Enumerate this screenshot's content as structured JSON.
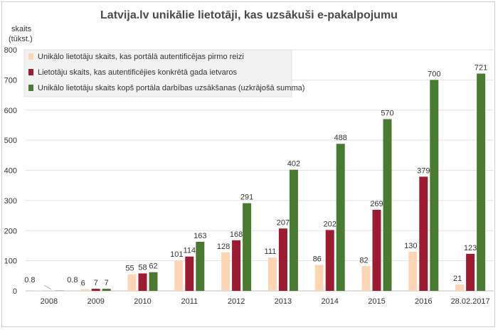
{
  "chart_data": {
    "type": "bar",
    "title": "Latvija.lv unikālie lietotāji, kas uzsākuši e-pakalpojumu",
    "ylabel_lines": [
      "skaits",
      "(tūkst.)"
    ],
    "ylim": [
      0,
      800
    ],
    "yticks": [
      0,
      100,
      200,
      300,
      400,
      500,
      600,
      700,
      800
    ],
    "grid": true,
    "legend_position": "top-left",
    "categories": [
      "2008",
      "2009",
      "2010",
      "2011",
      "2012",
      "2013",
      "2014",
      "2015",
      "2016",
      "28.02.2017"
    ],
    "series": [
      {
        "name": "Unikālo lietotāju skaits, kas portālā autentificējas pirmo reizi",
        "color": "#fcd5b5",
        "values": [
          0.8,
          6,
          55,
          101,
          128,
          111,
          86,
          82,
          130,
          21
        ],
        "labels": [
          "0.8",
          "6",
          "55",
          "101",
          "128",
          "111",
          "86",
          "82",
          "130",
          "21"
        ]
      },
      {
        "name": "Lietotāju skaits, kas autentificējies konkrētā gada ietvaros",
        "color": "#9b1c31",
        "values": [
          0,
          7,
          58,
          114,
          168,
          207,
          202,
          269,
          379,
          123
        ],
        "labels": [
          "",
          "7",
          "58",
          "114",
          "168",
          "207",
          "202",
          "269",
          "379",
          "123"
        ]
      },
      {
        "name": "Unikālo lietotāju skaits kopš portāla darbības uzsākšanas (uzkrājošā summa)",
        "color": "#4a7a32",
        "values": [
          0.8,
          7,
          62,
          163,
          291,
          402,
          488,
          570,
          700,
          721
        ],
        "labels": [
          "0.8",
          "7",
          "62",
          "163",
          "291",
          "402",
          "488",
          "570",
          "700",
          "721"
        ]
      }
    ]
  }
}
